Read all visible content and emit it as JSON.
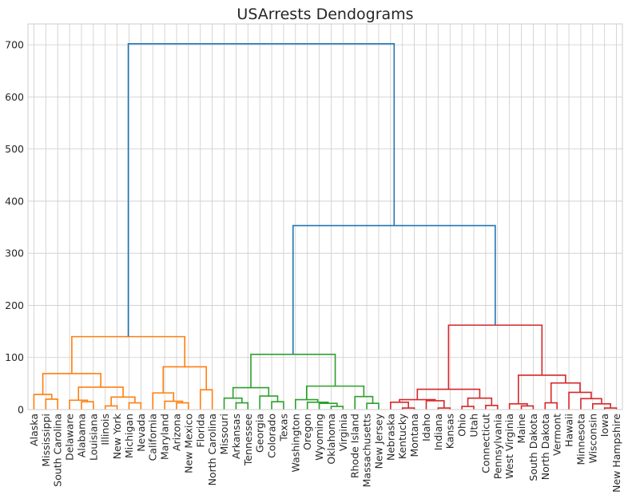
{
  "chart_data": {
    "type": "dendrogram",
    "title": "USArrests Dendograms",
    "ylim": [
      0,
      740
    ],
    "yticks": [
      0,
      100,
      200,
      300,
      400,
      500,
      600,
      700
    ],
    "grid": true,
    "leaves": [
      "Alaska",
      "Mississippi",
      "South Carolina",
      "Delaware",
      "Alabama",
      "Louisiana",
      "Illinois",
      "New York",
      "Michigan",
      "Nevada",
      "California",
      "Maryland",
      "Arizona",
      "New Mexico",
      "Florida",
      "North Carolina",
      "Missouri",
      "Arkansas",
      "Tennessee",
      "Georgia",
      "Colorado",
      "Texas",
      "Washington",
      "Oregon",
      "Wyoming",
      "Oklahoma",
      "Virginia",
      "Rhode Island",
      "Massachusetts",
      "New Jersey",
      "Nebraska",
      "Kentucky",
      "Montana",
      "Idaho",
      "Indiana",
      "Kansas",
      "Ohio",
      "Utah",
      "Connecticut",
      "Pennsylvania",
      "West Virginia",
      "Maine",
      "South Dakota",
      "North Dakota",
      "Vermont",
      "Hawaii",
      "Minnesota",
      "Wisconsin",
      "Iowa",
      "New Hampshire"
    ],
    "colors": {
      "orange": "#ff7f0e",
      "green": "#2ca02c",
      "red": "#d62728",
      "blue": "#1f77b4"
    },
    "merges": [
      {
        "a": 1,
        "b": 2,
        "h": 20,
        "c": "orange"
      },
      {
        "a": 0,
        "b": 50,
        "h": 29,
        "c": "orange"
      },
      {
        "a": 4,
        "b": 5,
        "h": 15,
        "c": "orange"
      },
      {
        "a": 3,
        "b": 52,
        "h": 18,
        "c": "orange"
      },
      {
        "a": 6,
        "b": 7,
        "h": 7,
        "c": "orange"
      },
      {
        "a": 8,
        "b": 9,
        "h": 13,
        "c": "orange"
      },
      {
        "a": 54,
        "b": 55,
        "h": 24,
        "c": "orange"
      },
      {
        "a": 53,
        "b": 56,
        "h": 43,
        "c": "orange"
      },
      {
        "a": 51,
        "b": 57,
        "h": 69,
        "c": "orange"
      },
      {
        "a": 12,
        "b": 13,
        "h": 13,
        "c": "orange"
      },
      {
        "a": 11,
        "b": 59,
        "h": 16,
        "c": "orange"
      },
      {
        "a": 10,
        "b": 60,
        "h": 32,
        "c": "orange"
      },
      {
        "a": 14,
        "b": 15,
        "h": 38,
        "c": "orange"
      },
      {
        "a": 61,
        "b": 62,
        "h": 82,
        "c": "orange"
      },
      {
        "a": 58,
        "b": 63,
        "h": 140,
        "c": "orange"
      },
      {
        "a": 17,
        "b": 18,
        "h": 13,
        "c": "green"
      },
      {
        "a": 16,
        "b": 65,
        "h": 22,
        "c": "green"
      },
      {
        "a": 20,
        "b": 21,
        "h": 15,
        "c": "green"
      },
      {
        "a": 19,
        "b": 67,
        "h": 26,
        "c": "green"
      },
      {
        "a": 66,
        "b": 68,
        "h": 42,
        "c": "green"
      },
      {
        "a": 25,
        "b": 26,
        "h": 6,
        "c": "green"
      },
      {
        "a": 24,
        "b": 70,
        "h": 12,
        "c": "green"
      },
      {
        "a": 23,
        "b": 71,
        "h": 14,
        "c": "green"
      },
      {
        "a": 22,
        "b": 72,
        "h": 19,
        "c": "green"
      },
      {
        "a": 28,
        "b": 29,
        "h": 12,
        "c": "green"
      },
      {
        "a": 27,
        "b": 74,
        "h": 25,
        "c": "green"
      },
      {
        "a": 73,
        "b": 75,
        "h": 45,
        "c": "green"
      },
      {
        "a": 69,
        "b": 76,
        "h": 106,
        "c": "green"
      },
      {
        "a": 31,
        "b": 32,
        "h": 3,
        "c": "red"
      },
      {
        "a": 30,
        "b": 78,
        "h": 14,
        "c": "red"
      },
      {
        "a": 34,
        "b": 35,
        "h": 3,
        "c": "red"
      },
      {
        "a": 33,
        "b": 80,
        "h": 17,
        "c": "red"
      },
      {
        "a": 79,
        "b": 81,
        "h": 19,
        "c": "red"
      },
      {
        "a": 36,
        "b": 37,
        "h": 6,
        "c": "red"
      },
      {
        "a": 38,
        "b": 39,
        "h": 8,
        "c": "red"
      },
      {
        "a": 83,
        "b": 84,
        "h": 22,
        "c": "red"
      },
      {
        "a": 82,
        "b": 85,
        "h": 39,
        "c": "red"
      },
      {
        "a": 41,
        "b": 42,
        "h": 7,
        "c": "red"
      },
      {
        "a": 40,
        "b": 87,
        "h": 11,
        "c": "red"
      },
      {
        "a": 43,
        "b": 44,
        "h": 13,
        "c": "red"
      },
      {
        "a": 48,
        "b": 49,
        "h": 3,
        "c": "red"
      },
      {
        "a": 47,
        "b": 90,
        "h": 11,
        "c": "red"
      },
      {
        "a": 46,
        "b": 91,
        "h": 21,
        "c": "red"
      },
      {
        "a": 45,
        "b": 92,
        "h": 33,
        "c": "red"
      },
      {
        "a": 89,
        "b": 93,
        "h": 51,
        "c": "red"
      },
      {
        "a": 88,
        "b": 94,
        "h": 66,
        "c": "red"
      },
      {
        "a": 86,
        "b": 95,
        "h": 162,
        "c": "red"
      },
      {
        "a": 77,
        "b": 96,
        "h": 353,
        "c": "blue"
      },
      {
        "a": 64,
        "b": 97,
        "h": 702,
        "c": "blue"
      }
    ]
  }
}
